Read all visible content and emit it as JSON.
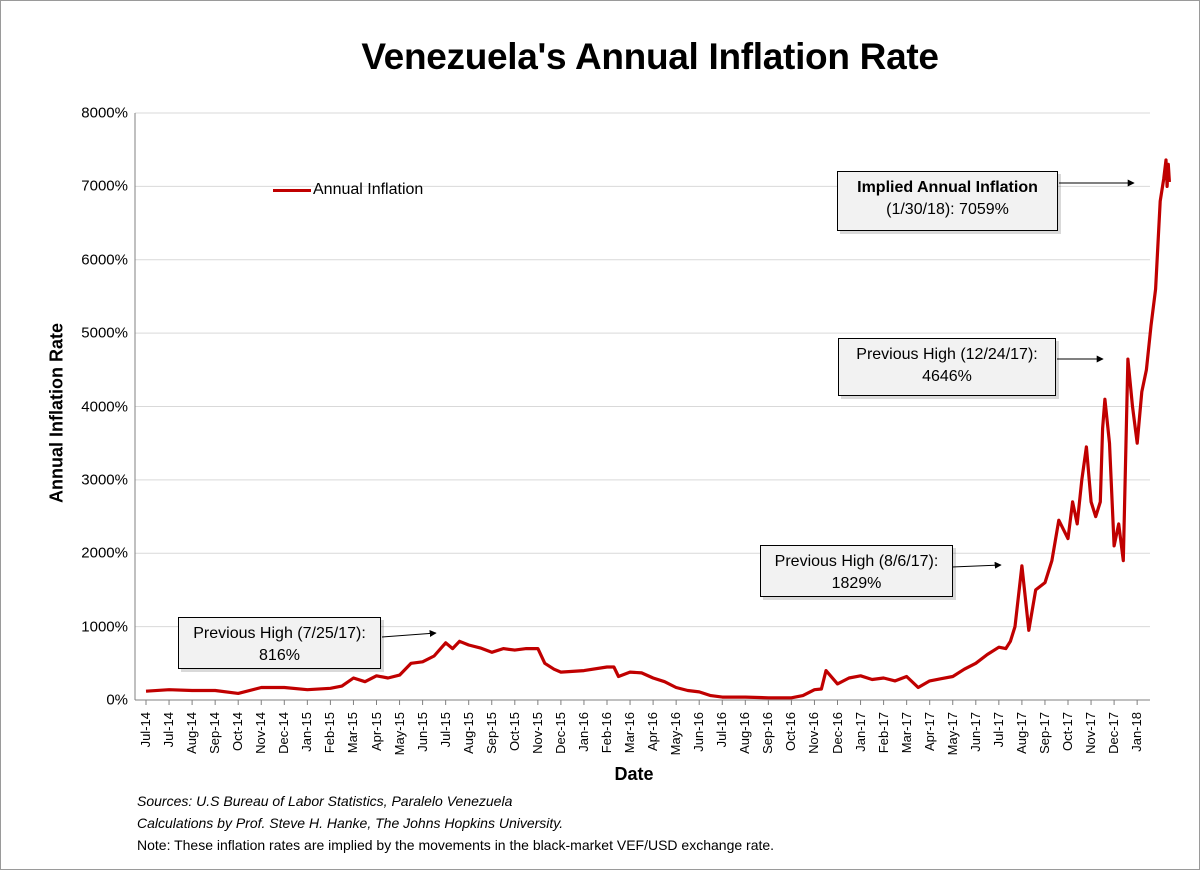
{
  "chart_data": {
    "type": "line",
    "title": "Venezuela's Annual Inflation Rate",
    "xlabel": "Date",
    "ylabel": "Annual Inflation Rate",
    "ylim": [
      0,
      8000
    ],
    "y_ticks": [
      "0%",
      "1000%",
      "2000%",
      "3000%",
      "4000%",
      "5000%",
      "6000%",
      "7000%",
      "8000%"
    ],
    "x_ticks": [
      "Jul-14",
      "Jul-14",
      "Aug-14",
      "Sep-14",
      "Oct-14",
      "Nov-14",
      "Dec-14",
      "Jan-15",
      "Feb-15",
      "Mar-15",
      "Apr-15",
      "May-15",
      "Jun-15",
      "Jul-15",
      "Aug-15",
      "Sep-15",
      "Oct-15",
      "Nov-15",
      "Dec-15",
      "Jan-16",
      "Feb-16",
      "Mar-16",
      "Apr-16",
      "May-16",
      "Jun-16",
      "Jul-16",
      "Aug-16",
      "Sep-16",
      "Oct-16",
      "Nov-16",
      "Dec-16",
      "Jan-17",
      "Feb-17",
      "Mar-17",
      "Apr-17",
      "May-17",
      "Jun-17",
      "Jul-17",
      "Aug-17",
      "Sep-17",
      "Oct-17",
      "Nov-17",
      "Dec-17",
      "Jan-18"
    ],
    "grid": "horizontal",
    "legend_position": "top-left",
    "series": [
      {
        "name": "Annual Inflation",
        "color": "#c00000",
        "x_index": [
          0,
          1,
          2,
          3,
          4,
          5,
          6,
          7,
          8,
          8.5,
          9,
          9.5,
          10,
          10.5,
          11,
          11.5,
          12,
          12.5,
          13,
          13.3,
          13.6,
          14,
          14.5,
          15,
          15.5,
          16,
          16.5,
          17,
          17.3,
          17.7,
          18,
          19,
          20,
          20.3,
          20.5,
          21,
          21.5,
          22,
          22.5,
          23,
          23.5,
          24,
          24.5,
          25,
          26,
          27,
          28,
          28.5,
          29,
          29.3,
          29.5,
          30,
          30.5,
          31,
          31.5,
          32,
          32.5,
          33,
          33.5,
          34,
          34.5,
          35,
          35.5,
          36,
          36.5,
          37,
          37.3,
          37.5,
          37.7,
          38,
          38.3,
          38.6,
          39,
          39.3,
          39.6,
          40,
          40.2,
          40.4,
          40.6,
          40.8,
          41,
          41.2,
          41.4,
          41.5,
          41.6,
          41.8,
          42,
          42.2,
          42.4,
          42.6,
          42.8,
          43,
          43.2,
          43.4,
          43.6,
          43.8,
          44,
          44.15,
          44.25,
          44.3,
          44.35,
          44.4
        ],
        "values": [
          120,
          140,
          130,
          130,
          90,
          170,
          170,
          140,
          160,
          190,
          300,
          250,
          330,
          300,
          340,
          500,
          520,
          600,
          780,
          700,
          800,
          750,
          710,
          650,
          700,
          680,
          700,
          700,
          500,
          420,
          380,
          400,
          450,
          450,
          320,
          380,
          370,
          300,
          250,
          170,
          130,
          110,
          60,
          40,
          40,
          30,
          30,
          60,
          140,
          150,
          400,
          220,
          300,
          330,
          280,
          300,
          260,
          320,
          170,
          260,
          290,
          320,
          420,
          500,
          620,
          720,
          700,
          800,
          1000,
          1829,
          950,
          1500,
          1600,
          1900,
          2450,
          2200,
          2700,
          2400,
          3000,
          3450,
          2700,
          2500,
          2700,
          3700,
          4100,
          3500,
          2100,
          2400,
          1900,
          4646,
          4000,
          3500,
          4200,
          4500,
          5100,
          5600,
          6800,
          7100,
          7360,
          7000,
          7300,
          7059
        ]
      }
    ],
    "annotations": [
      {
        "line1": "Previous High (7/25/17):",
        "line2": "816%"
      },
      {
        "line1": "Previous High (8/6/17):",
        "line2": "1829%"
      },
      {
        "line1": "Previous High (12/24/17):",
        "line2": "4646%"
      },
      {
        "line1": "Implied Annual Inflation",
        "line2": "(1/30/18): 7059%"
      }
    ]
  },
  "footer": {
    "sources": "Sources: U.S Bureau of Labor Statistics, Paralelo Venezuela",
    "calculations": "Calculations by Prof. Steve H. Hanke, The Johns Hopkins University.",
    "note": "Note: These inflation rates are implied by the movements in the black-market VEF/USD exchange rate."
  }
}
